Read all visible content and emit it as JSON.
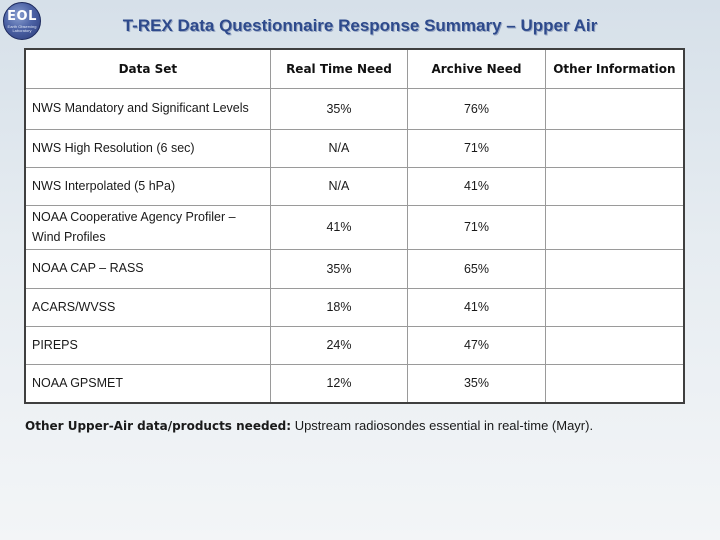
{
  "logo": {
    "text": "EOL",
    "subtext": "Earth Observing Laboratory"
  },
  "title": "T-REX Data Questionnaire Response Summary – Upper Air",
  "table": {
    "headers": [
      "Data Set",
      "Real Time Need",
      "Archive Need",
      "Other Information"
    ],
    "rows": [
      {
        "data_set": "NWS Mandatory and Significant Levels",
        "real_time": "35%",
        "archive": "76%",
        "other": ""
      },
      {
        "data_set": "NWS High Resolution (6 sec)",
        "real_time": "N/A",
        "archive": "71%",
        "other": ""
      },
      {
        "data_set": "NWS Interpolated (5 hPa)",
        "real_time": "N/A",
        "archive": "41%",
        "other": ""
      },
      {
        "data_set": "NOAA Cooperative Agency Profiler – Wind Profiles",
        "real_time": "41%",
        "archive": "71%",
        "other": ""
      },
      {
        "data_set": "NOAA CAP – RASS",
        "real_time": "35%",
        "archive": "65%",
        "other": ""
      },
      {
        "data_set": "ACARS/WVSS",
        "real_time": "18%",
        "archive": "41%",
        "other": ""
      },
      {
        "data_set": "PIREPS",
        "real_time": "24%",
        "archive": "47%",
        "other": ""
      },
      {
        "data_set": "NOAA GPSMET",
        "real_time": "12%",
        "archive": "35%",
        "other": ""
      }
    ]
  },
  "footnote": {
    "lead": "Other Upper-Air data/products needed:",
    "text": " Upstream radiosondes essential in real-time (Mayr)."
  }
}
